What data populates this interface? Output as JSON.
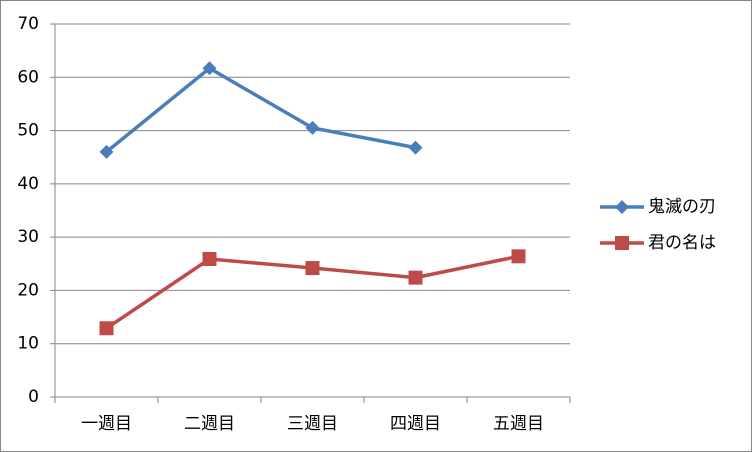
{
  "chart_data": {
    "type": "line",
    "categories": [
      "一週目",
      "二週目",
      "三週目",
      "四週目",
      "五週目"
    ],
    "series": [
      {
        "name": "鬼滅の刃",
        "color": "#4a7ebb",
        "marker": "diamond",
        "values": [
          46,
          61.7,
          50.5,
          46.8,
          null
        ]
      },
      {
        "name": "君の名は",
        "color": "#be4b48",
        "marker": "square",
        "values": [
          12.9,
          25.9,
          24.2,
          22.4,
          26.4
        ]
      }
    ],
    "ylim": [
      0,
      70
    ],
    "yticks": [
      0,
      10,
      20,
      30,
      40,
      50,
      60,
      70
    ],
    "grid": true,
    "legend": "right"
  }
}
